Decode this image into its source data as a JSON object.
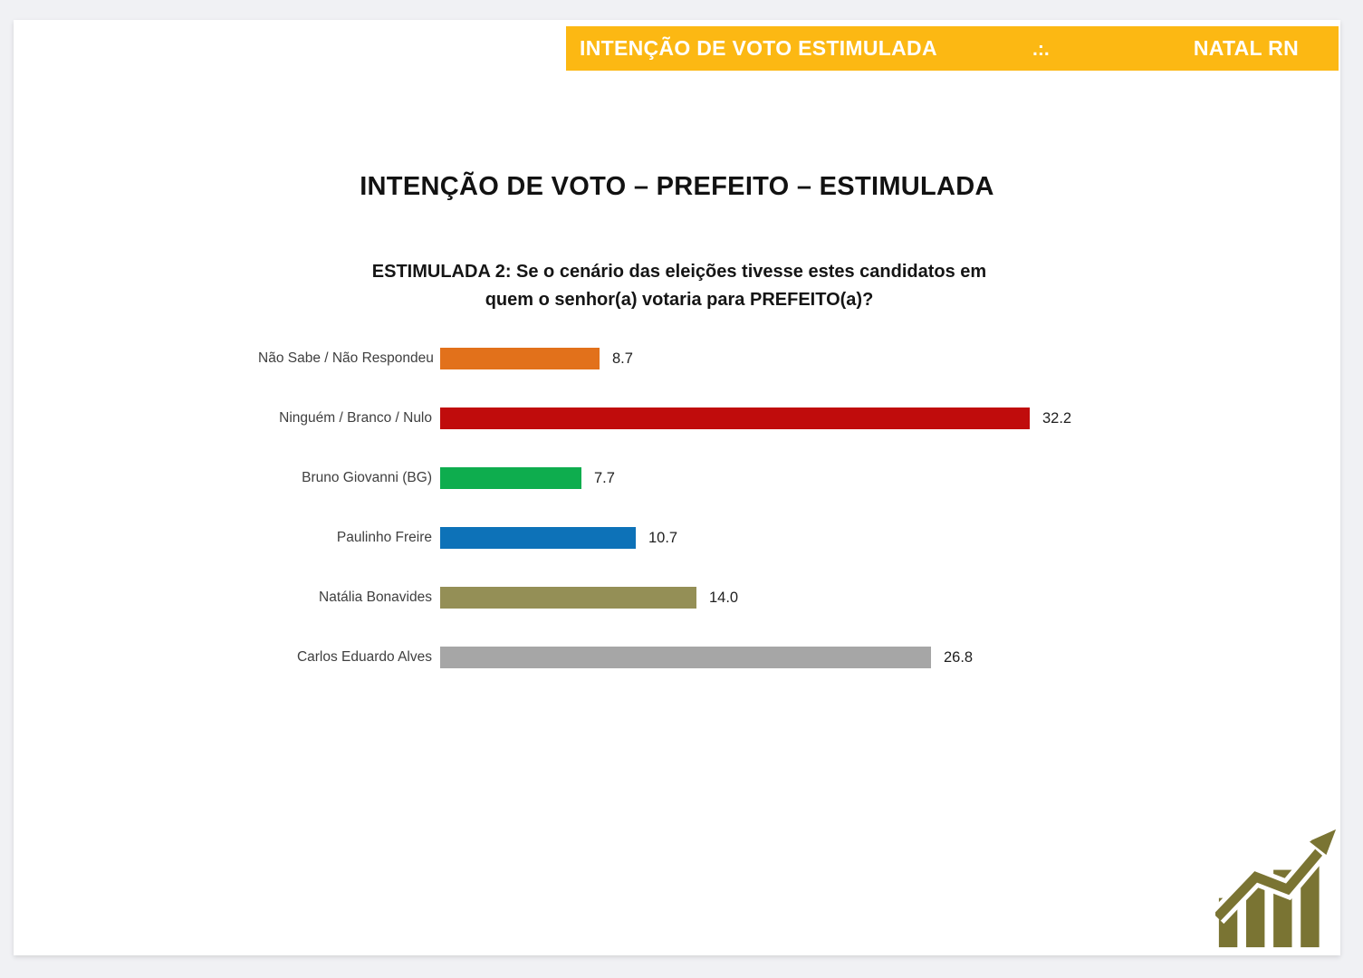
{
  "banner": {
    "left_text": "INTENÇÃO DE VOTO ESTIMULADA",
    "separator": ".:.",
    "right_text": "NATAL RN",
    "background": "#FCB813",
    "text_color": "#FFFFFF"
  },
  "page_title": "INTENÇÃO DE VOTO – PREFEITO – ESTIMULADA",
  "chart_data": {
    "type": "bar",
    "orientation": "horizontal",
    "title": "ESTIMULADA 2: Se o cenário das eleições tivesse estes candidatos em quem o senhor(a) votaria para PREFEITO(a)?",
    "title_lines": [
      "ESTIMULADA 2: Se o cenário das eleições tivesse estes candidatos em",
      "quem o senhor(a) votaria para PREFEITO(a)?"
    ],
    "categories": [
      "Não Sabe / Não Respondeu",
      "Ninguém / Branco / Nulo",
      "Bruno Giovanni (BG)",
      "Paulinho Freire",
      "Natália Bonavides",
      "Carlos Eduardo Alves"
    ],
    "values": [
      8.7,
      32.2,
      7.7,
      10.7,
      14.0,
      26.8
    ],
    "bar_colors": [
      "#E2711B",
      "#C00C0C",
      "#0EAD4E",
      "#0D72B8",
      "#948F56",
      "#A6A6A6"
    ],
    "xlim": [
      0,
      32.2
    ],
    "value_label_decimals": 1,
    "legend": "none",
    "grid": false
  },
  "footer": {
    "logo_icon": "trending-up-bar-chart-icon",
    "logo_color": "#7A7433"
  }
}
